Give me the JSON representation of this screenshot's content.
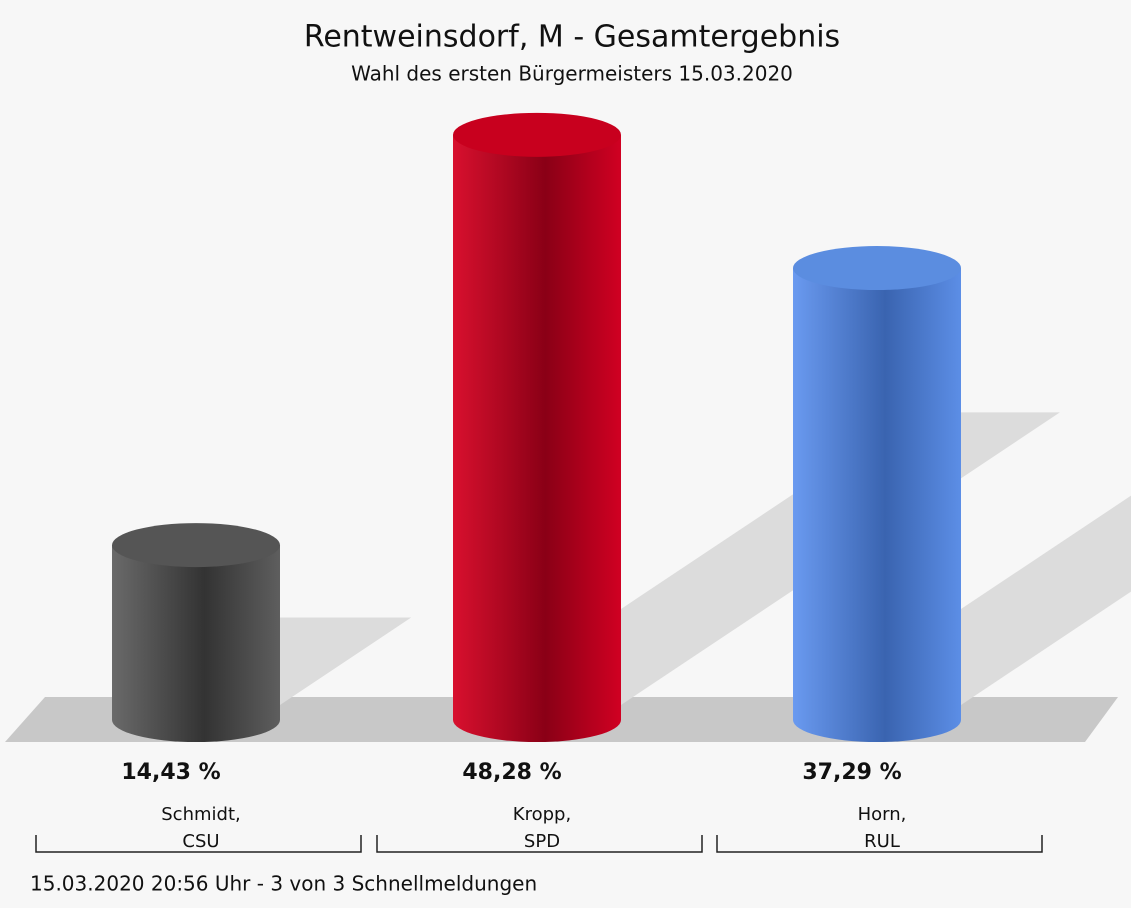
{
  "chart_data": {
    "type": "bar",
    "title": "Rentweinsdorf, M - Gesamtergebnis",
    "subtitle": "Wahl des ersten Bürgermeisters 15.03.2020",
    "categories": [
      [
        "Schmidt,",
        "CSU"
      ],
      [
        "Kropp,",
        "SPD"
      ],
      [
        "Horn,",
        "RUL"
      ]
    ],
    "series": [
      {
        "name": null,
        "colors": [
          "#555555",
          "#c8001e",
          "#5b8de0"
        ],
        "values": [
          14.43,
          48.28,
          37.29
        ],
        "value_labels": [
          "14,43 %",
          "48,28 %",
          "37,29 %"
        ]
      }
    ],
    "footnote": "15.03.2020 20:56 Uhr - 3 von 3 Schnellmeldungen"
  }
}
